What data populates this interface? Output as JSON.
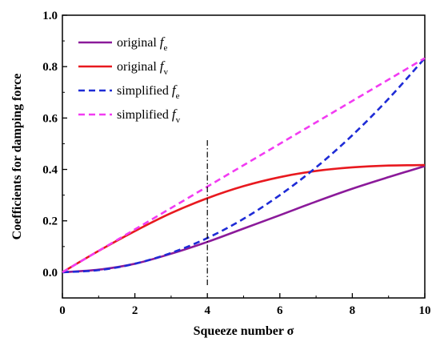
{
  "chart_data": {
    "type": "line",
    "title": "",
    "xlabel": "Squeeze number σ",
    "ylabel": "Coefficients for damping force",
    "xlim": [
      0,
      10
    ],
    "ylim": [
      -0.1,
      1.0
    ],
    "xticks": [
      "0",
      "2",
      "4",
      "6",
      "8",
      "10"
    ],
    "yticks": [
      "0.0",
      "0.2",
      "0.4",
      "0.6",
      "0.8",
      "1.0"
    ],
    "grid": false,
    "legend_position": "top-left",
    "reference_line": {
      "x": 4,
      "y_range": [
        -0.05,
        0.52
      ],
      "style": "dash-dot",
      "color": "#000000"
    },
    "series": [
      {
        "name": "original f_e",
        "base": "original ",
        "symbol": "f",
        "subscript": "e",
        "color": "#8B1A9A",
        "style": "solid",
        "x": [
          0,
          1,
          2,
          3,
          4,
          5,
          6,
          7,
          8,
          9,
          10
        ],
        "y": [
          0.0,
          0.01,
          0.033,
          0.072,
          0.118,
          0.17,
          0.222,
          0.275,
          0.325,
          0.37,
          0.413
        ]
      },
      {
        "name": "original f_v",
        "base": "original ",
        "symbol": "f",
        "subscript": "v",
        "color": "#E8191F",
        "style": "solid",
        "x": [
          0,
          1,
          2,
          3,
          4,
          5,
          6,
          7,
          8,
          9,
          10
        ],
        "y": [
          0.0,
          0.083,
          0.16,
          0.23,
          0.288,
          0.335,
          0.37,
          0.394,
          0.408,
          0.415,
          0.417
        ]
      },
      {
        "name": "simplified f_e",
        "base": "simplified ",
        "symbol": "f",
        "subscript": "e",
        "color": "#1E2BD6",
        "style": "dashed",
        "x": [
          0,
          1,
          2,
          3,
          4,
          5,
          6,
          7,
          8,
          9,
          10
        ],
        "y": [
          0.0,
          0.0083,
          0.033,
          0.075,
          0.133,
          0.208,
          0.3,
          0.408,
          0.533,
          0.675,
          0.833
        ]
      },
      {
        "name": "simplified f_v",
        "base": "simplified ",
        "symbol": "f",
        "subscript": "v",
        "color": "#F23BF2",
        "style": "dashed",
        "x": [
          0,
          10
        ],
        "y": [
          0.0,
          0.833
        ]
      }
    ]
  }
}
